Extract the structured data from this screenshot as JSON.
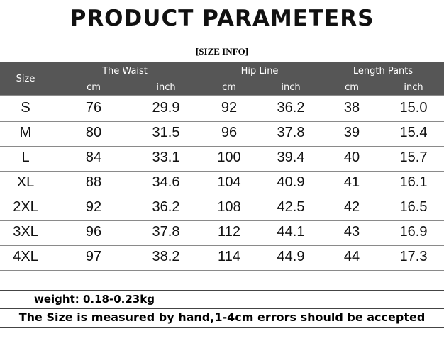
{
  "header": {
    "title": "PRODUCT PARAMETERS",
    "subtitle": "[SIZE INFO]"
  },
  "table": {
    "size_header": "Size",
    "groups": [
      "The Waist",
      "Hip Line",
      "Length Pants"
    ],
    "units": [
      "cm",
      "inch",
      "cm",
      "inch",
      "cm",
      "inch"
    ],
    "rows": [
      [
        "S",
        "76",
        "29.9",
        "92",
        "36.2",
        "38",
        "15.0"
      ],
      [
        "M",
        "80",
        "31.5",
        "96",
        "37.8",
        "39",
        "15.4"
      ],
      [
        "L",
        "84",
        "33.1",
        "100",
        "39.4",
        "40",
        "15.7"
      ],
      [
        "XL",
        "88",
        "34.6",
        "104",
        "40.9",
        "41",
        "16.1"
      ],
      [
        "2XL",
        "92",
        "36.2",
        "108",
        "42.5",
        "42",
        "16.5"
      ],
      [
        "3XL",
        "96",
        "37.8",
        "112",
        "44.1",
        "43",
        "16.9"
      ],
      [
        "4XL",
        "97",
        "38.2",
        "114",
        "44.9",
        "44",
        "17.3"
      ]
    ]
  },
  "notes": {
    "weight": "weight: 0.18-0.23kg",
    "disclaimer": "The Size is measured by hand,1-4cm errors should be accepted"
  }
}
